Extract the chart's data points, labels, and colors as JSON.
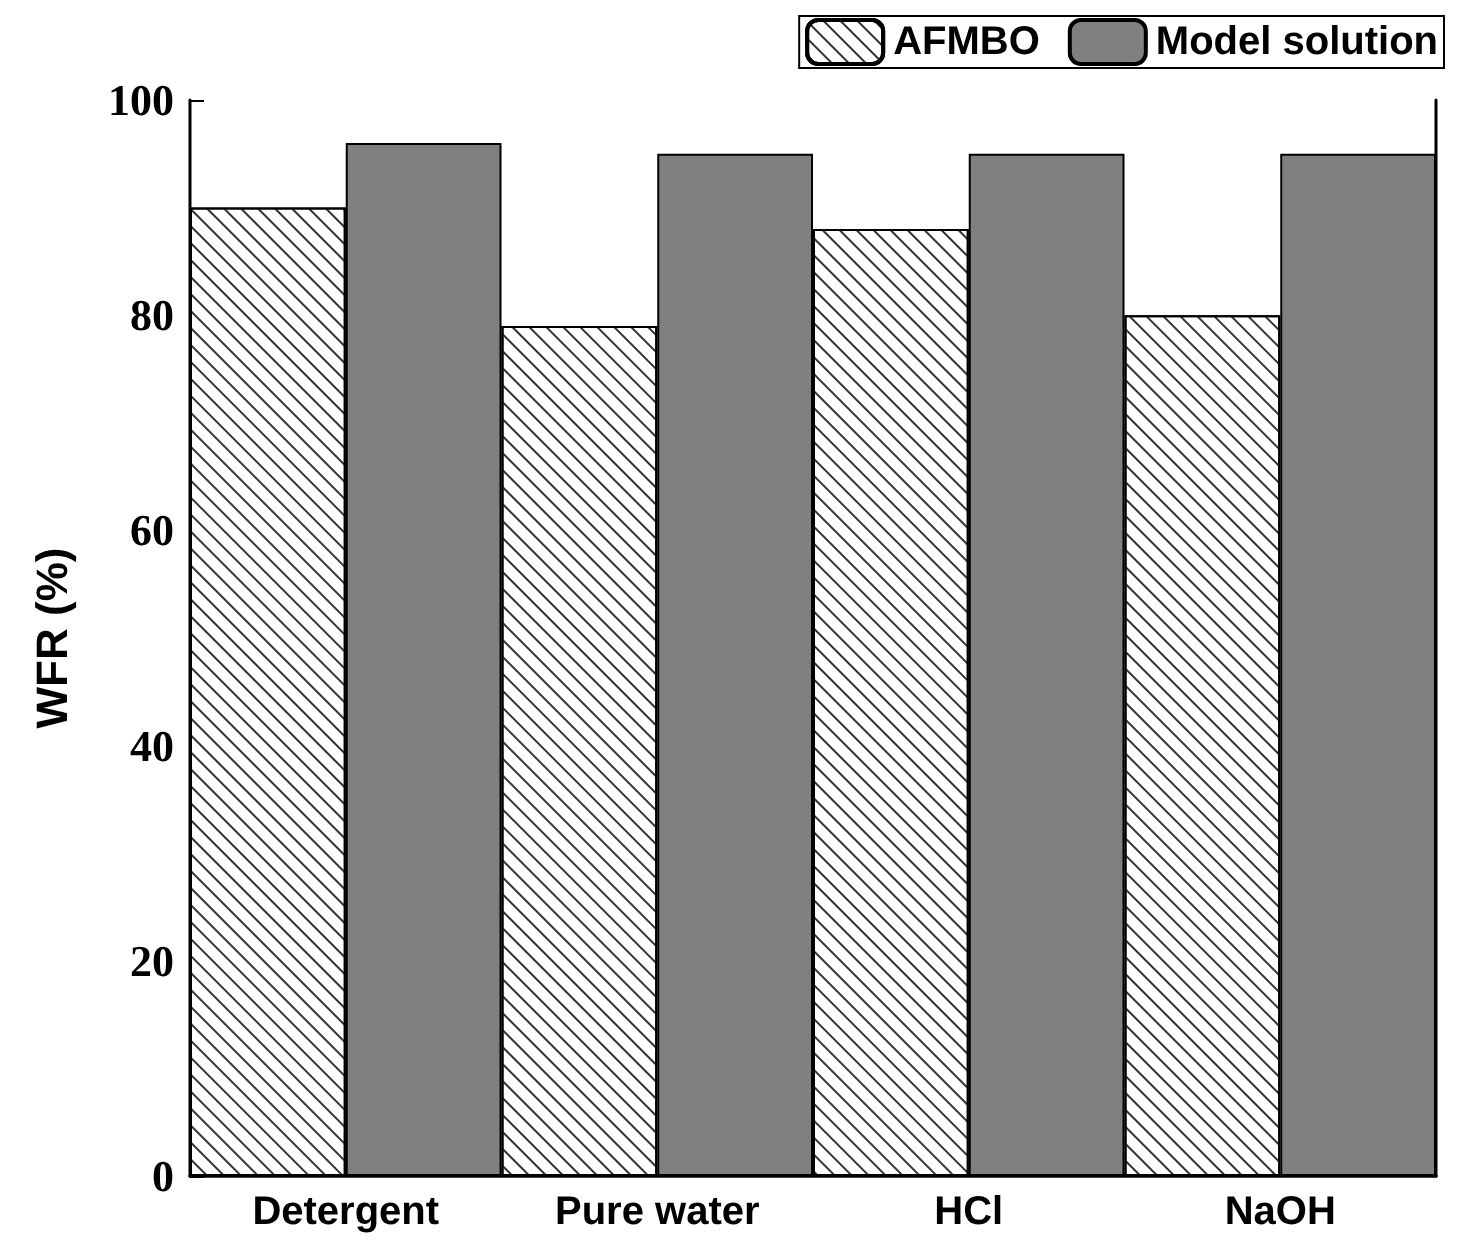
{
  "chart_data": {
    "type": "bar",
    "ylabel": "WFR (%)",
    "categories": [
      "Detergent",
      "Pure water",
      "HCl",
      "NaOH"
    ],
    "series": [
      {
        "name": "AFMBO",
        "color": "#ffffff",
        "values": [
          90,
          79,
          88,
          80
        ]
      },
      {
        "name": "Model solution",
        "color": "#808080",
        "values": [
          96,
          95,
          95,
          95
        ]
      }
    ],
    "ylim": [
      0,
      100
    ],
    "yticks": [
      0,
      20,
      40,
      60,
      80,
      100
    ],
    "grid": false,
    "legend": "top right"
  }
}
